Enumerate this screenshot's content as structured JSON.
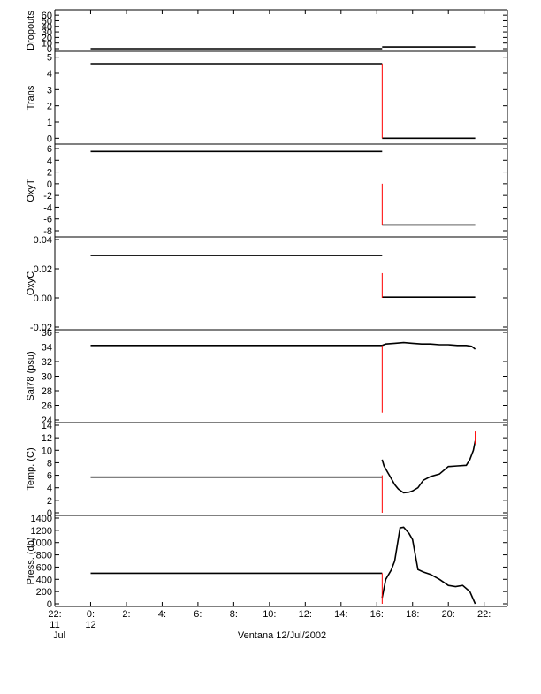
{
  "figure": {
    "xlabel": "Ventana 12/Jul/2002",
    "x_ticks": [
      {
        "t": -2,
        "label": "22:",
        "sub1": "11",
        "sub2": "Jul"
      },
      {
        "t": 0,
        "label": "0:",
        "sub1": "12",
        "sub2": ""
      },
      {
        "t": 2,
        "label": "2:",
        "sub1": "",
        "sub2": ""
      },
      {
        "t": 4,
        "label": "4:",
        "sub1": "",
        "sub2": ""
      },
      {
        "t": 6,
        "label": "6:",
        "sub1": "",
        "sub2": ""
      },
      {
        "t": 8,
        "label": "8:",
        "sub1": "",
        "sub2": ""
      },
      {
        "t": 10,
        "label": "10:",
        "sub1": "",
        "sub2": ""
      },
      {
        "t": 12,
        "label": "12:",
        "sub1": "",
        "sub2": ""
      },
      {
        "t": 14,
        "label": "14:",
        "sub1": "",
        "sub2": ""
      },
      {
        "t": 16,
        "label": "16:",
        "sub1": "",
        "sub2": ""
      },
      {
        "t": 18,
        "label": "18:",
        "sub1": "",
        "sub2": ""
      },
      {
        "t": 20,
        "label": "20:",
        "sub1": "",
        "sub2": ""
      },
      {
        "t": 22,
        "label": "22:",
        "sub1": "",
        "sub2": ""
      }
    ],
    "x_range_hours": [
      -2,
      23.3
    ],
    "line_color": "#000000",
    "spike_color": "#ff0000"
  },
  "chart_data": [
    {
      "type": "line",
      "ylabel": "Dropouts",
      "ylim": [
        0,
        65
      ],
      "yticks": [
        0,
        10,
        20,
        30,
        40,
        50,
        60
      ],
      "yticklabels": [
        "0",
        "10",
        "20",
        "30",
        "40",
        "50",
        "60"
      ],
      "series": [
        {
          "x": [
            0,
            16.3
          ],
          "y": [
            0,
            0
          ]
        },
        {
          "x": [
            16.3,
            16.5,
            17,
            17.5,
            18,
            18.5,
            19,
            19.5,
            20,
            20.5,
            21,
            21.5
          ],
          "y": [
            3,
            3,
            3,
            3,
            3,
            3,
            3,
            3,
            3,
            3,
            3,
            3
          ]
        }
      ],
      "spikes": []
    },
    {
      "type": "line",
      "ylabel": "Trans",
      "ylim": [
        -0.2,
        5.2
      ],
      "yticks": [
        0,
        1,
        2,
        3,
        4,
        5
      ],
      "yticklabels": [
        "0",
        "1",
        "2",
        "3",
        "4",
        "5"
      ],
      "series": [
        {
          "x": [
            0,
            16.3
          ],
          "y": [
            4.6,
            4.6
          ]
        },
        {
          "x": [
            16.3,
            21.5
          ],
          "y": [
            0,
            0
          ]
        }
      ],
      "spikes": [
        {
          "x": 16.3,
          "y0": 0,
          "y1": 4.6
        }
      ]
    },
    {
      "type": "line",
      "ylabel": "OxyT",
      "ylim": [
        -8.6,
        6.3
      ],
      "yticks": [
        -8,
        -6,
        -4,
        -2,
        0,
        2,
        4,
        6
      ],
      "yticklabels": [
        "-8",
        "-6",
        "-4",
        "-2",
        "0",
        "2",
        "4",
        "6"
      ],
      "series": [
        {
          "x": [
            0,
            16.3
          ],
          "y": [
            5.5,
            5.5
          ]
        },
        {
          "x": [
            16.3,
            16.5,
            17,
            17.5,
            18,
            18.5,
            19,
            19.5,
            20,
            20.5,
            21,
            21.5
          ],
          "y": [
            -7,
            -7,
            -7,
            -7,
            -7,
            -7,
            -7,
            -7,
            -7,
            -7,
            -7,
            -7
          ]
        }
      ],
      "spikes": [
        {
          "x": 16.3,
          "y0": -7,
          "y1": 0
        }
      ]
    },
    {
      "type": "line",
      "ylabel": "OxyC",
      "ylim": [
        -0.02,
        0.04
      ],
      "yticks": [
        -0.02,
        0.0,
        0.02,
        0.04
      ],
      "yticklabels": [
        "-0.02",
        "0.00",
        "0.02",
        "0.04"
      ],
      "series": [
        {
          "x": [
            0,
            16.3
          ],
          "y": [
            0.029,
            0.029
          ]
        },
        {
          "x": [
            16.3,
            16.5,
            17,
            17.5,
            18,
            18.5,
            19,
            19.5,
            20,
            20.5,
            21,
            21.5
          ],
          "y": [
            0.0005,
            0.0005,
            0.0005,
            0.0005,
            0.0005,
            0.0005,
            0.0005,
            0.0005,
            0.0005,
            0.0005,
            0.0005,
            0.0005
          ]
        }
      ],
      "spikes": [
        {
          "x": 16.3,
          "y0": 0,
          "y1": 0.017
        }
      ]
    },
    {
      "type": "line",
      "ylabel": "Sal78 (psu)",
      "ylim": [
        24,
        36
      ],
      "yticks": [
        24,
        26,
        28,
        30,
        32,
        34,
        36
      ],
      "yticklabels": [
        "24",
        "26",
        "28",
        "30",
        "32",
        "34",
        "36"
      ],
      "series": [
        {
          "x": [
            0,
            16.3
          ],
          "y": [
            34.2,
            34.2
          ]
        },
        {
          "x": [
            16.3,
            16.5,
            17,
            17.5,
            18,
            18.5,
            19,
            19.5,
            20,
            20.5,
            21,
            21.3,
            21.5
          ],
          "y": [
            34.2,
            34.4,
            34.5,
            34.6,
            34.5,
            34.4,
            34.4,
            34.3,
            34.3,
            34.2,
            34.2,
            34.1,
            33.7
          ]
        }
      ],
      "spikes": [
        {
          "x": 16.3,
          "y0": 25,
          "y1": 34.2
        }
      ]
    },
    {
      "type": "line",
      "ylabel": "Temp. (C)",
      "ylim": [
        0,
        14
      ],
      "yticks": [
        0,
        2,
        4,
        6,
        8,
        10,
        12,
        14
      ],
      "yticklabels": [
        "0",
        "2",
        "4",
        "6",
        "8",
        "10",
        "12",
        "14"
      ],
      "series": [
        {
          "x": [
            0,
            16.3
          ],
          "y": [
            5.7,
            5.7
          ]
        },
        {
          "x": [
            16.3,
            16.4,
            16.6,
            16.8,
            17,
            17.2,
            17.5,
            17.8,
            18,
            18.3,
            18.6,
            19,
            19.5,
            20,
            20.5,
            21,
            21.2,
            21.4,
            21.5
          ],
          "y": [
            8.5,
            7.5,
            6.5,
            5.5,
            4.5,
            3.8,
            3.2,
            3.3,
            3.5,
            4,
            5.2,
            5.8,
            6.2,
            7.4,
            7.5,
            7.6,
            8.5,
            10,
            11.5
          ]
        }
      ],
      "spikes": [
        {
          "x": 16.3,
          "y0": 0,
          "y1": 6
        },
        {
          "x": 21.5,
          "y0": 11,
          "y1": 13
        }
      ]
    },
    {
      "type": "line",
      "ylabel": "Press. (db)",
      "ylim": [
        0,
        1400
      ],
      "yticks": [
        0,
        200,
        400,
        600,
        800,
        1000,
        1200,
        1400
      ],
      "yticklabels": [
        "0",
        "200",
        "400",
        "600",
        "800",
        "1000",
        "1200",
        "1400"
      ],
      "series": [
        {
          "x": [
            0,
            16.3
          ],
          "y": [
            500,
            500
          ]
        },
        {
          "x": [
            16.3,
            16.5,
            16.8,
            17,
            17.3,
            17.5,
            17.8,
            18,
            18.3,
            18.6,
            19,
            19.5,
            20,
            20.4,
            20.8,
            21.2,
            21.5
          ],
          "y": [
            100,
            400,
            550,
            700,
            1240,
            1250,
            1150,
            1050,
            560,
            520,
            480,
            400,
            300,
            280,
            300,
            200,
            0
          ]
        }
      ],
      "spikes": [
        {
          "x": 16.3,
          "y0": 0,
          "y1": 500
        }
      ]
    }
  ]
}
